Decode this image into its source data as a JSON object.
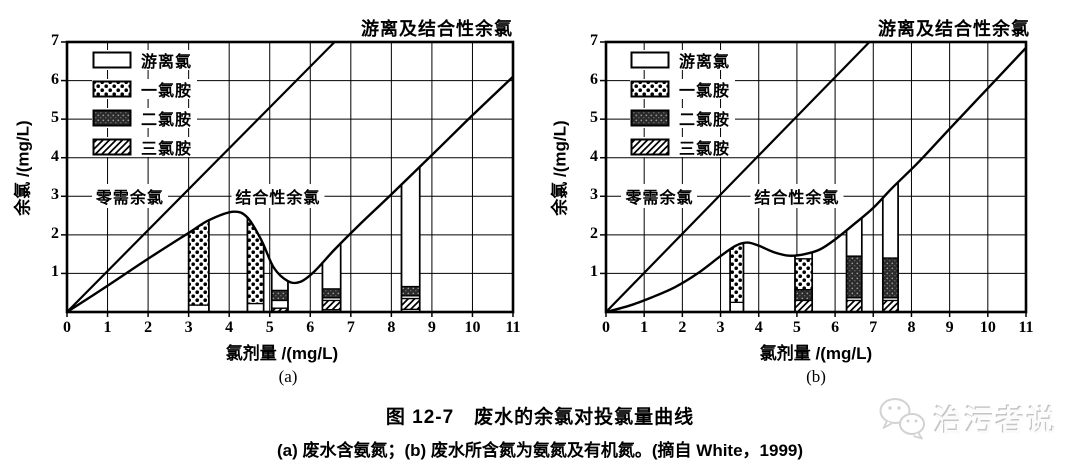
{
  "colors": {
    "ink": "#000000",
    "background": "#ffffff",
    "watermark_gray": "#d9d9d9"
  },
  "chart_data": [
    {
      "type": "line",
      "panel": "(a)",
      "title": "游离及结合性余氯",
      "xlabel": "氯剂量 /(mg/L)",
      "ylabel": "余氯 /(mg/L)",
      "xlim": [
        0,
        11
      ],
      "ylim": [
        0,
        7
      ],
      "xticks": [
        0,
        1,
        2,
        3,
        4,
        5,
        6,
        7,
        8,
        9,
        10,
        11
      ],
      "yticks": [
        0,
        1,
        2,
        3,
        4,
        5,
        6,
        7
      ],
      "grid": true,
      "region_labels": [
        {
          "text": "零需余氯",
          "x": 1.55,
          "y": 3
        },
        {
          "text": "结合性余氯",
          "x": 5.2,
          "y": 3
        }
      ],
      "legend": [
        {
          "label": "游离氯",
          "kind": "free"
        },
        {
          "label": "一氯胺",
          "kind": "mono"
        },
        {
          "label": "二氯胺",
          "kind": "di"
        },
        {
          "label": "三氯胺",
          "kind": "tri"
        }
      ],
      "series": [
        {
          "name": "zero_demand_line",
          "points": [
            [
              0,
              0
            ],
            [
              6.6,
              7
            ]
          ]
        },
        {
          "name": "breakpoint_curve",
          "points": [
            [
              0,
              0
            ],
            [
              1,
              0.68
            ],
            [
              2,
              1.38
            ],
            [
              3,
              2.05
            ],
            [
              3.5,
              2.38
            ],
            [
              4.1,
              2.6
            ],
            [
              4.45,
              2.45
            ],
            [
              4.8,
              1.85
            ],
            [
              5.1,
              1.15
            ],
            [
              5.45,
              0.8
            ],
            [
              5.75,
              0.78
            ],
            [
              6.1,
              1.05
            ],
            [
              6.6,
              1.62
            ],
            [
              7.2,
              2.25
            ],
            [
              8,
              3.05
            ],
            [
              9,
              4.07
            ],
            [
              10,
              5.1
            ],
            [
              11,
              6.1
            ]
          ]
        }
      ],
      "bars": [
        {
          "x0": 3.0,
          "x1": 3.5,
          "segments": [
            {
              "kind": "free",
              "y0": 0,
              "y1": 0.18
            },
            {
              "kind": "mono",
              "y0": 0.18,
              "y1": 2.4
            }
          ]
        },
        {
          "x0": 4.45,
          "x1": 4.85,
          "segments": [
            {
              "kind": "free",
              "y0": 0,
              "y1": 0.22
            },
            {
              "kind": "mono",
              "y0": 0.22,
              "y1": 2.1
            }
          ]
        },
        {
          "x0": 5.05,
          "x1": 5.45,
          "segments": [
            {
              "kind": "tri",
              "y0": 0,
              "y1": 0.1
            },
            {
              "kind": "free",
              "y0": 0.1,
              "y1": 0.3
            },
            {
              "kind": "di",
              "y0": 0.3,
              "y1": 0.56
            },
            {
              "kind": "free",
              "y0": 0.56,
              "y1": 0.8
            }
          ]
        },
        {
          "x0": 6.3,
          "x1": 6.75,
          "segments": [
            {
              "kind": "free",
              "y0": 0,
              "y1": 0.06
            },
            {
              "kind": "tri",
              "y0": 0.06,
              "y1": 0.3
            },
            {
              "kind": "free",
              "y0": 0.3,
              "y1": 0.37
            },
            {
              "kind": "di",
              "y0": 0.37,
              "y1": 0.6
            },
            {
              "kind": "free",
              "y0": 0.6,
              "y1": 1.55
            }
          ]
        },
        {
          "x0": 8.25,
          "x1": 8.7,
          "segments": [
            {
              "kind": "free",
              "y0": 0,
              "y1": 0.07
            },
            {
              "kind": "tri",
              "y0": 0.07,
              "y1": 0.35
            },
            {
              "kind": "free",
              "y0": 0.35,
              "y1": 0.42
            },
            {
              "kind": "di",
              "y0": 0.42,
              "y1": 0.66
            },
            {
              "kind": "free",
              "y0": 0.66,
              "y1": 3.55
            }
          ]
        }
      ]
    },
    {
      "type": "line",
      "panel": "(b)",
      "title": "游离及结合性余氯",
      "xlabel": "氯剂量 /(mg/L)",
      "ylabel": "余氯 /(mg/L)",
      "xlim": [
        0,
        11
      ],
      "ylim": [
        0,
        7
      ],
      "xticks": [
        0,
        1,
        2,
        3,
        4,
        5,
        6,
        7,
        8,
        9,
        10,
        11
      ],
      "yticks": [
        0,
        1,
        2,
        3,
        4,
        5,
        6,
        7
      ],
      "grid": true,
      "region_labels": [
        {
          "text": "零需余氯",
          "x": 1.4,
          "y": 3
        },
        {
          "text": "结合性余氯",
          "x": 5.0,
          "y": 3
        }
      ],
      "legend": [
        {
          "label": "游离氯",
          "kind": "free"
        },
        {
          "label": "一氯胺",
          "kind": "mono"
        },
        {
          "label": "二氯胺",
          "kind": "di"
        },
        {
          "label": "三氯胺",
          "kind": "tri"
        }
      ],
      "series": [
        {
          "name": "zero_demand_line",
          "points": [
            [
              0,
              0
            ],
            [
              6.9,
              7
            ]
          ]
        },
        {
          "name": "breakpoint_curve",
          "points": [
            [
              0,
              0
            ],
            [
              0.6,
              0.16
            ],
            [
              1.2,
              0.38
            ],
            [
              1.8,
              0.64
            ],
            [
              2.4,
              1.0
            ],
            [
              3.0,
              1.45
            ],
            [
              3.4,
              1.72
            ],
            [
              3.7,
              1.8
            ],
            [
              4.0,
              1.72
            ],
            [
              4.4,
              1.55
            ],
            [
              4.8,
              1.46
            ],
            [
              5.2,
              1.5
            ],
            [
              5.6,
              1.62
            ],
            [
              6.0,
              1.88
            ],
            [
              6.5,
              2.28
            ],
            [
              7.0,
              2.7
            ],
            [
              7.5,
              3.22
            ],
            [
              8.2,
              3.9
            ],
            [
              9,
              4.75
            ],
            [
              10,
              5.8
            ],
            [
              11,
              6.85
            ]
          ]
        }
      ],
      "bars": [
        {
          "x0": 3.25,
          "x1": 3.6,
          "segments": [
            {
              "kind": "free",
              "y0": 0,
              "y1": 0.25
            },
            {
              "kind": "mono",
              "y0": 0.25,
              "y1": 1.75
            }
          ]
        },
        {
          "x0": 4.95,
          "x1": 5.4,
          "segments": [
            {
              "kind": "tri",
              "y0": 0,
              "y1": 0.3
            },
            {
              "kind": "di",
              "y0": 0.3,
              "y1": 0.58
            },
            {
              "kind": "mono",
              "y0": 0.58,
              "y1": 1.38
            },
            {
              "kind": "free",
              "y0": 1.38,
              "y1": 1.5
            }
          ]
        },
        {
          "x0": 6.3,
          "x1": 6.7,
          "segments": [
            {
              "kind": "tri",
              "y0": 0,
              "y1": 0.3
            },
            {
              "kind": "free",
              "y0": 0.3,
              "y1": 0.37
            },
            {
              "kind": "di",
              "y0": 0.37,
              "y1": 1.45
            },
            {
              "kind": "free",
              "y0": 1.45,
              "y1": 2.3
            }
          ]
        },
        {
          "x0": 7.25,
          "x1": 7.65,
          "segments": [
            {
              "kind": "tri",
              "y0": 0,
              "y1": 0.3
            },
            {
              "kind": "free",
              "y0": 0.3,
              "y1": 0.37
            },
            {
              "kind": "di",
              "y0": 0.37,
              "y1": 1.4
            },
            {
              "kind": "free",
              "y0": 1.4,
              "y1": 3.1
            }
          ]
        }
      ]
    }
  ],
  "caption": {
    "line1": "图 12-7　废水的余氯对投氯量曲线",
    "line2": "(a) 废水含氨氮；(b) 废水所含氮为氨氮及有机氮。(摘自 White，1999)"
  },
  "watermark": {
    "text": "治污者说",
    "icon": "chat-bubbles-icon"
  }
}
